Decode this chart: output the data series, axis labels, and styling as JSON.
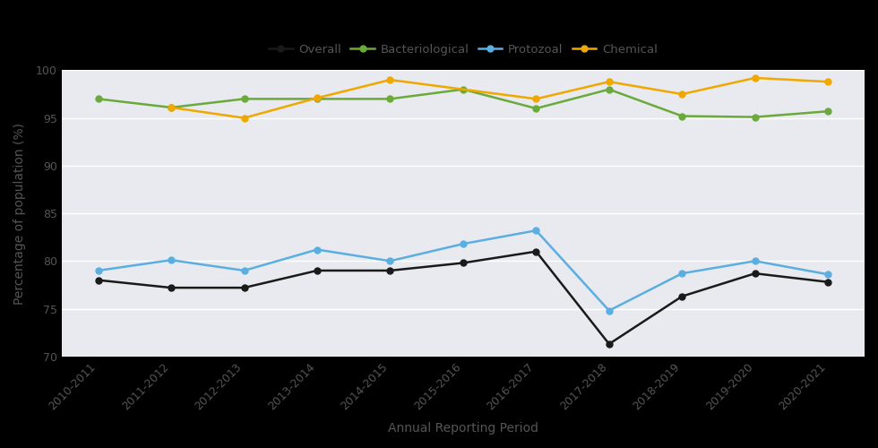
{
  "years": [
    "2010-2011",
    "2011-2012",
    "2012-2013",
    "2013-2014",
    "2014-2015",
    "2015-2016",
    "2016-2017",
    "2017-2018",
    "2018-2019",
    "2019-2020",
    "2020-2021"
  ],
  "bacteriological": [
    97.0,
    96.1,
    97.0,
    97.0,
    97.0,
    98.0,
    96.0,
    98.0,
    95.2,
    95.1,
    95.7
  ],
  "protozoal": [
    79.0,
    80.1,
    79.0,
    81.2,
    80.0,
    81.8,
    83.2,
    74.8,
    78.7,
    80.0,
    78.6
  ],
  "chemical": [
    null,
    96.1,
    95.0,
    97.1,
    99.0,
    null,
    97.0,
    98.8,
    97.5,
    99.2,
    98.8
  ],
  "overall": [
    78.0,
    77.2,
    77.2,
    79.0,
    79.0,
    79.8,
    81.0,
    71.3,
    76.3,
    78.7,
    77.8
  ],
  "overall_color": "#1a1a1a",
  "bacteriological_color": "#6aaa3a",
  "protozoal_color": "#5aafe0",
  "chemical_color": "#f0a800",
  "fig_bg_color": "#000000",
  "plot_bg_color": "#e8eaf0",
  "text_color": "#555555",
  "grid_color": "#ffffff",
  "ylabel": "Percentage of population (%)",
  "xlabel": "Annual Reporting Period",
  "ylim_min": 70,
  "ylim_max": 100,
  "yticks": [
    70,
    75,
    80,
    85,
    90,
    95,
    100
  ],
  "legend_labels": [
    "Overall",
    "Bacteriological",
    "Protozoal",
    "Chemical"
  ],
  "marker": "o",
  "markersize": 5,
  "linewidth": 1.8
}
